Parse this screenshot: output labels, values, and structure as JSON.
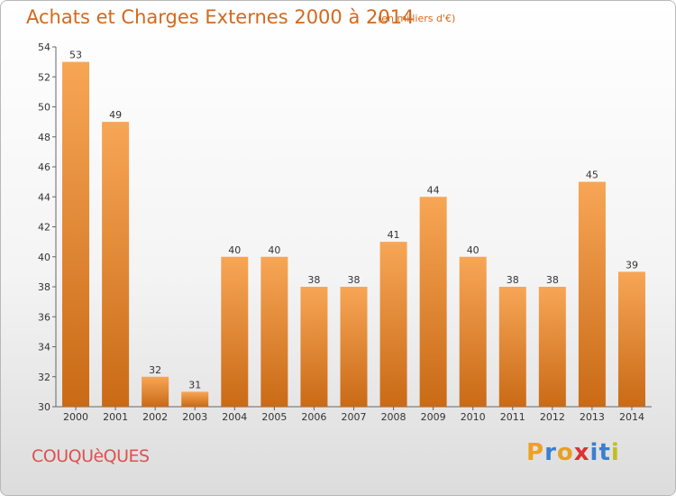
{
  "header": {
    "title": "Achats et Charges Externes 2000 à 2014",
    "subtitle": "(en milliers d'€)"
  },
  "footer": {
    "commune": "COUQUèQUES",
    "logo_letters": [
      "P",
      "r",
      "o",
      "x",
      "i",
      "t",
      "i"
    ],
    "logo_colors": [
      "#f0a020",
      "#3a7fd0",
      "#e8a020",
      "#e03030",
      "#3a7fd0",
      "#3a7fd0",
      "#c0c020"
    ]
  },
  "colors": {
    "bar_top": "#f7a656",
    "bar_bottom": "#c96a16",
    "title": "#d2691e"
  },
  "chart_data": {
    "type": "bar",
    "title": "Achats et Charges Externes 2000 à 2014",
    "subtitle": "(en milliers d'€)",
    "categories": [
      "2000",
      "2001",
      "2002",
      "2003",
      "2004",
      "2005",
      "2006",
      "2007",
      "2008",
      "2009",
      "2010",
      "2011",
      "2012",
      "2013",
      "2014"
    ],
    "values": [
      53,
      49,
      32,
      31,
      40,
      40,
      38,
      38,
      41,
      44,
      40,
      38,
      38,
      45,
      39
    ],
    "ylim": [
      30,
      54
    ],
    "yticks": [
      30,
      32,
      34,
      36,
      38,
      40,
      42,
      44,
      46,
      48,
      50,
      52,
      54
    ],
    "grid": false,
    "data_labels": true
  }
}
